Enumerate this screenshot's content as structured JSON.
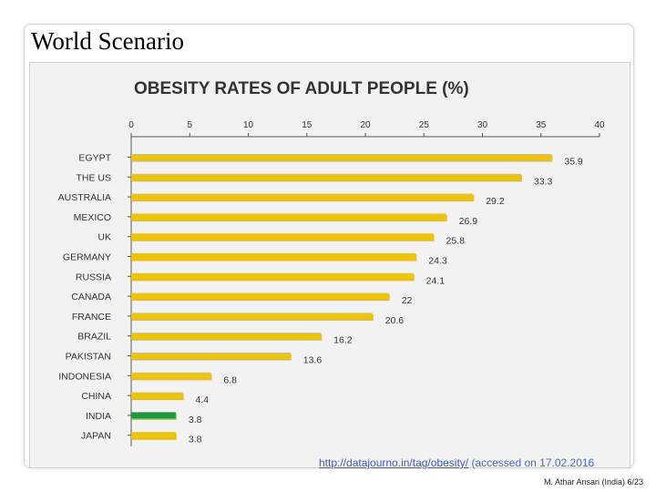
{
  "slide": {
    "title": "World Scenario",
    "source_url": "http://datajourno.in/tag/obesity/",
    "source_note": " (accessed on 17.02.2016",
    "footer": "M. Athar Ansari (India) 6/23"
  },
  "chart_data": {
    "type": "bar",
    "orientation": "horizontal",
    "title": "OBESITY RATES OF ADULT PEOPLE (%)",
    "categories": [
      "EGYPT",
      "THE US",
      "AUSTRALIA",
      "MEXICO",
      "UK",
      "GERMANY",
      "RUSSIA",
      "CANADA",
      "FRANCE",
      "BRAZIL",
      "PAKISTAN",
      "INDONESIA",
      "CHINA",
      "INDIA",
      "JAPAN"
    ],
    "values": [
      35.9,
      33.3,
      29.2,
      26.9,
      25.8,
      24.3,
      24.1,
      22,
      20.6,
      16.2,
      13.6,
      6.8,
      4.4,
      3.8,
      3.8
    ],
    "data_labels": [
      "35.9",
      "33.3",
      "29.2",
      "26.9",
      "25.8",
      "24.3",
      "24.1",
      "22",
      "20.6",
      "16.2",
      "13.6",
      "6.8",
      "4.4",
      "3.8",
      "3.8"
    ],
    "xlim": [
      0,
      40
    ],
    "xticks": [
      0,
      5,
      10,
      15,
      20,
      25,
      30,
      35,
      40
    ],
    "axis_position": "top",
    "grid": false,
    "colors": {
      "bar": "#f0c400",
      "bar_shadow": "#9a7f00",
      "highlight": "#1f9a3a",
      "highlight_category": "INDIA",
      "text": "#333333"
    }
  }
}
